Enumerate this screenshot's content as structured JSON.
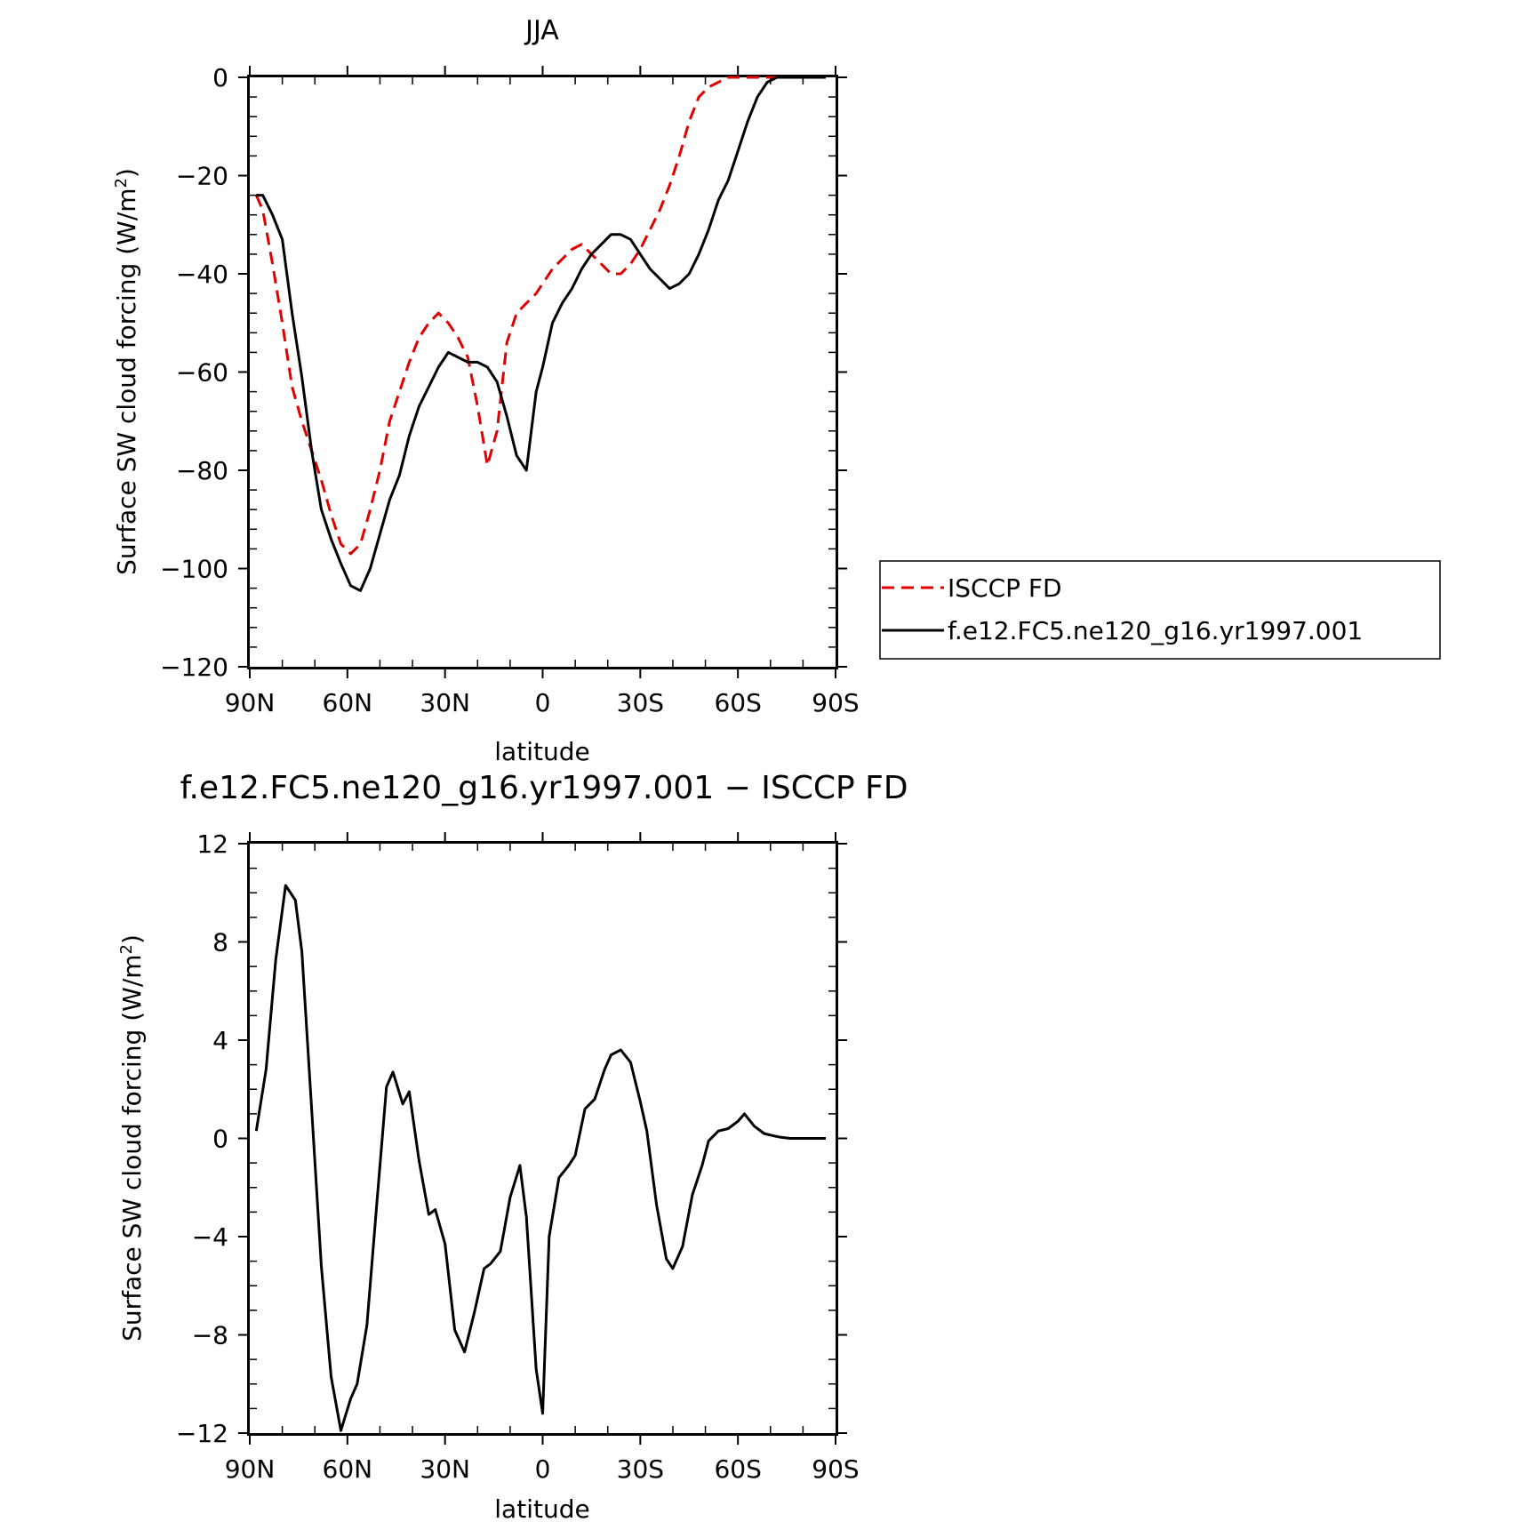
{
  "chart_data": [
    {
      "type": "line",
      "title": "JJA",
      "xlabel": "latitude",
      "ylabel_main": "Surface SW cloud forcing (W/m",
      "ylabel_sup": "2",
      "ylabel_close": ")",
      "xlim": [
        90,
        -90
      ],
      "ylim": [
        -120,
        0
      ],
      "xticks": [
        {
          "value": 90,
          "label": "90N"
        },
        {
          "value": 60,
          "label": "60N"
        },
        {
          "value": 30,
          "label": "30N"
        },
        {
          "value": 0,
          "label": "0"
        },
        {
          "value": -30,
          "label": "30S"
        },
        {
          "value": -60,
          "label": "60S"
        },
        {
          "value": -90,
          "label": "90S"
        }
      ],
      "yticks": [
        {
          "value": 0,
          "label": "0"
        },
        {
          "value": -20,
          "label": "−20"
        },
        {
          "value": -40,
          "label": "−40"
        },
        {
          "value": -60,
          "label": "−60"
        },
        {
          "value": -80,
          "label": "−80"
        },
        {
          "value": -100,
          "label": "−100"
        },
        {
          "value": -120,
          "label": "−120"
        }
      ],
      "legend": {
        "position": "right"
      },
      "series": [
        {
          "name": "ISCCP FD",
          "color": "#e00000",
          "style": "dashed",
          "x": [
            88,
            86,
            83,
            80,
            77,
            74,
            71,
            68,
            65,
            62,
            59,
            56,
            53,
            50,
            47,
            44,
            41,
            38,
            35,
            32,
            29,
            26,
            23,
            20,
            17,
            14,
            11,
            8,
            5,
            2,
            0,
            -3,
            -6,
            -9,
            -12,
            -15,
            -18,
            -21,
            -24,
            -27,
            -30,
            -33,
            -36,
            -39,
            -42,
            -45,
            -48,
            -51,
            -54,
            -57,
            -60,
            -63,
            -66,
            -69,
            -72,
            -75,
            -78,
            -81,
            -84,
            -87
          ],
          "y": [
            -24,
            -27,
            -38,
            -50,
            -63,
            -70,
            -76,
            -82,
            -89,
            -95,
            -97,
            -95,
            -88,
            -80,
            -70,
            -64,
            -58,
            -53,
            -50,
            -48,
            -50,
            -53,
            -57,
            -67,
            -79,
            -72,
            -54,
            -48,
            -46,
            -44,
            -42,
            -39,
            -37,
            -35,
            -34,
            -36,
            -38,
            -40,
            -40,
            -38,
            -35,
            -31,
            -27,
            -22,
            -16,
            -9,
            -4,
            -2,
            -1,
            0,
            0,
            0,
            0,
            0,
            0,
            0,
            0,
            0,
            0,
            0
          ]
        },
        {
          "name": "f.e12.FC5.ne120_g16.yr1997.001",
          "color": "#000000",
          "style": "solid",
          "x": [
            88,
            86,
            83,
            80,
            77,
            74,
            71,
            68,
            65,
            62,
            59,
            56,
            53,
            50,
            47,
            44,
            41,
            38,
            35,
            32,
            29,
            26,
            23,
            20,
            17,
            14,
            11,
            8,
            5,
            2,
            0,
            -3,
            -6,
            -9,
            -12,
            -15,
            -18,
            -21,
            -24,
            -27,
            -30,
            -33,
            -36,
            -39,
            -42,
            -45,
            -48,
            -51,
            -54,
            -57,
            -60,
            -63,
            -66,
            -69,
            -72,
            -75,
            -78,
            -81,
            -84,
            -87
          ],
          "y": [
            -24,
            -24,
            -28,
            -33,
            -48,
            -61,
            -76,
            -88,
            -94,
            -99,
            -103.5,
            -104.5,
            -100,
            -93,
            -86,
            -81,
            -73,
            -67,
            -63,
            -59,
            -56,
            -57,
            -58,
            -58,
            -59,
            -62,
            -69,
            -77,
            -80,
            -64,
            -59,
            -50,
            -46,
            -43,
            -39,
            -36,
            -34,
            -32,
            -32,
            -33,
            -36,
            -39,
            -41,
            -43,
            -42,
            -40,
            -36,
            -31,
            -25,
            -21,
            -15,
            -9,
            -4,
            -1,
            0,
            0,
            0,
            0,
            0,
            0
          ]
        }
      ]
    },
    {
      "type": "line",
      "title": "f.e12.FC5.ne120_g16.yr1997.001 − ISCCP FD",
      "xlabel": "latitude",
      "ylabel_main": "Surface SW cloud forcing (W/m",
      "ylabel_sup": "2",
      "ylabel_close": ")",
      "xlim": [
        90,
        -90
      ],
      "ylim": [
        -12,
        12
      ],
      "xticks": [
        {
          "value": 90,
          "label": "90N"
        },
        {
          "value": 60,
          "label": "60N"
        },
        {
          "value": 30,
          "label": "30N"
        },
        {
          "value": 0,
          "label": "0"
        },
        {
          "value": -30,
          "label": "30S"
        },
        {
          "value": -60,
          "label": "60S"
        },
        {
          "value": -90,
          "label": "90S"
        }
      ],
      "yticks": [
        {
          "value": 12,
          "label": "12"
        },
        {
          "value": 8,
          "label": "8"
        },
        {
          "value": 4,
          "label": "4"
        },
        {
          "value": 0,
          "label": "0"
        },
        {
          "value": -4,
          "label": "−4"
        },
        {
          "value": -8,
          "label": "−8"
        },
        {
          "value": -12,
          "label": "−12"
        }
      ],
      "series": [
        {
          "color": "#000000",
          "style": "solid",
          "x": [
            88,
            85,
            82,
            79,
            76,
            74,
            71,
            68,
            65,
            62,
            59,
            57,
            54,
            51,
            48,
            46,
            43,
            41,
            38,
            35,
            33,
            30,
            27,
            24,
            21,
            18,
            16,
            13,
            10,
            7,
            5,
            2,
            0,
            -2,
            -5,
            -8,
            -10,
            -13,
            -16,
            -19,
            -21,
            -24,
            -27,
            -30,
            -32,
            -35,
            -38,
            -40,
            -43,
            -46,
            -49,
            -51,
            -54,
            -57,
            -60,
            -62,
            -65,
            -68,
            -71,
            -73,
            -76,
            -79,
            -82,
            -84,
            -87
          ],
          "y": [
            0.3,
            2.8,
            7.3,
            10.3,
            9.7,
            7.6,
            1.2,
            -5.2,
            -9.7,
            -11.9,
            -10.6,
            -10.0,
            -7.6,
            -2.7,
            2.1,
            2.7,
            1.4,
            1.9,
            -0.9,
            -3.1,
            -2.9,
            -4.3,
            -7.8,
            -8.7,
            -7.1,
            -5.3,
            -5.1,
            -4.6,
            -2.4,
            -1.1,
            -3.2,
            -9.4,
            -11.2,
            -4.0,
            -1.6,
            -1.1,
            -0.7,
            1.2,
            1.6,
            2.8,
            3.4,
            3.6,
            3.1,
            1.5,
            0.3,
            -2.7,
            -4.9,
            -5.3,
            -4.4,
            -2.3,
            -1.1,
            -0.1,
            0.3,
            0.4,
            0.7,
            1.0,
            0.5,
            0.2,
            0.1,
            0.05,
            0,
            0,
            0,
            0,
            0
          ]
        }
      ]
    }
  ]
}
